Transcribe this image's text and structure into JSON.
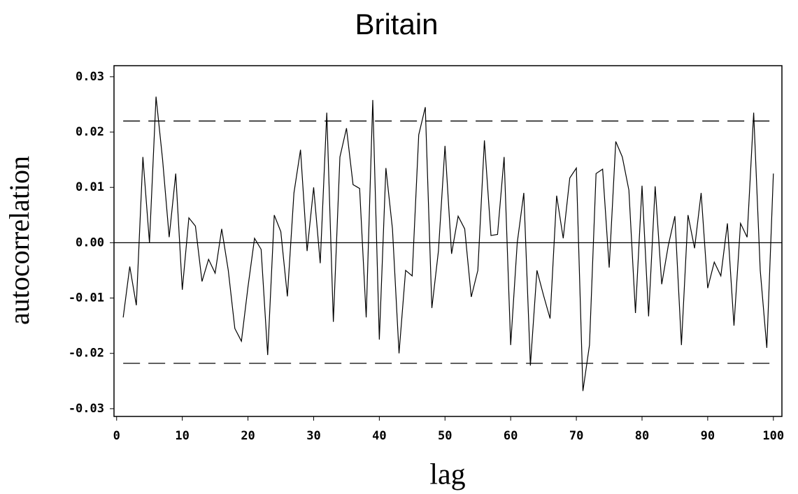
{
  "chart_data": {
    "type": "line",
    "title": "Britain",
    "x_label": "lag",
    "y_label": "autocorrelation",
    "x": [
      1,
      2,
      3,
      4,
      5,
      6,
      7,
      8,
      9,
      10,
      11,
      12,
      13,
      14,
      15,
      16,
      17,
      18,
      19,
      20,
      21,
      22,
      23,
      24,
      25,
      26,
      27,
      28,
      29,
      30,
      31,
      32,
      33,
      34,
      35,
      36,
      37,
      38,
      39,
      40,
      41,
      42,
      43,
      44,
      45,
      46,
      47,
      48,
      49,
      50,
      51,
      52,
      53,
      54,
      55,
      56,
      57,
      58,
      59,
      60,
      61,
      62,
      63,
      64,
      65,
      66,
      67,
      68,
      69,
      70,
      71,
      72,
      73,
      74,
      75,
      76,
      77,
      78,
      79,
      80,
      81,
      82,
      83,
      84,
      85,
      86,
      87,
      88,
      89,
      90,
      91,
      92,
      93,
      94,
      95,
      96,
      97,
      98,
      99,
      100
    ],
    "series": [
      {
        "color": "#000000",
        "values": [
          -0.0135,
          -0.0043,
          -0.0113,
          0.0155,
          0.0,
          0.0264,
          0.015,
          0.001,
          0.0125,
          -0.0085,
          0.0045,
          0.003,
          -0.007,
          -0.003,
          -0.0055,
          0.0025,
          -0.005,
          -0.0155,
          -0.0178,
          -0.008,
          0.0008,
          -0.0012,
          -0.0203,
          0.005,
          0.002,
          -0.0097,
          0.009,
          0.0168,
          -0.0015,
          0.01,
          -0.0037,
          0.0235,
          -0.0143,
          0.0155,
          0.0207,
          0.0105,
          0.0098,
          -0.0135,
          0.0258,
          -0.0175,
          0.0135,
          0.0025,
          -0.02,
          -0.005,
          -0.006,
          0.0195,
          0.0245,
          -0.0118,
          -0.0015,
          0.0175,
          -0.002,
          0.0048,
          0.0025,
          -0.0098,
          -0.005,
          0.0185,
          0.0013,
          0.0015,
          0.0155,
          -0.0185,
          0.0,
          0.009,
          -0.0222,
          -0.005,
          -0.0095,
          -0.0137,
          0.0085,
          0.0008,
          0.0117,
          0.0135,
          -0.0268,
          -0.0185,
          0.0125,
          0.0133,
          -0.0045,
          0.0183,
          0.0155,
          0.0095,
          -0.0127,
          0.0103,
          -0.0133,
          0.0102,
          -0.0075,
          -0.0005,
          0.0048,
          -0.0185,
          0.005,
          -0.001,
          0.009,
          -0.0082,
          -0.0035,
          -0.006,
          0.0035,
          -0.015,
          0.0035,
          0.001,
          0.0235,
          -0.005,
          -0.019,
          0.0125
        ]
      }
    ],
    "reference_lines": [
      {
        "value": 0.022,
        "style": "dashed"
      },
      {
        "value": -0.0218,
        "style": "dashed"
      },
      {
        "value": 0,
        "style": "solid"
      }
    ],
    "xlim": [
      -0.4,
      101.3
    ],
    "ylim": [
      -0.0314,
      0.032
    ],
    "xticks": [
      0,
      10,
      20,
      30,
      40,
      50,
      60,
      70,
      80,
      90,
      100
    ],
    "yticks": [
      0.03,
      0.02,
      0.01,
      {
        "value": 0,
        "label": "0.00"
      },
      -0.01,
      -0.02,
      -0.03
    ]
  }
}
